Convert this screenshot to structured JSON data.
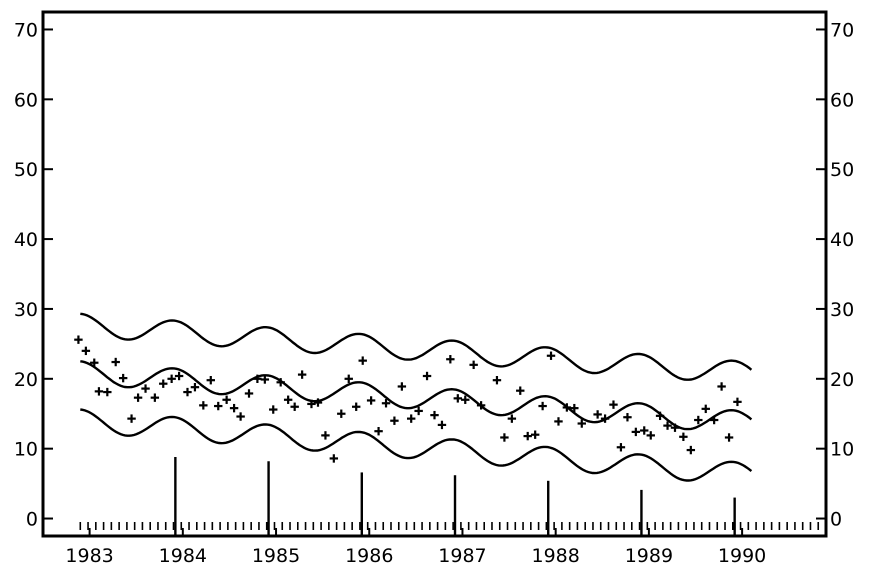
{
  "chart_data": {
    "type": "scatter",
    "title": "",
    "xlabel": "",
    "ylabel": "",
    "x_tick_labels": [
      "1983",
      "1984",
      "1985",
      "1986",
      "1987",
      "1988",
      "1989",
      "1990"
    ],
    "y_tick_labels": [
      "0",
      "10",
      "20",
      "30",
      "40",
      "50",
      "60",
      "70"
    ],
    "xlim": [
      1982.5,
      1990.9
    ],
    "ylim": [
      -2.5,
      72.5
    ],
    "grid": false,
    "legend": "none",
    "curves": [
      {
        "role": "upper",
        "trend_start": 27.7,
        "trend_end": 20.8,
        "amplitude": 1.6,
        "x_start": 1982.9,
        "x_end": 1990.1
      },
      {
        "role": "center",
        "trend_start": 20.9,
        "trend_end": 13.7,
        "amplitude": 1.6,
        "x_start": 1982.9,
        "x_end": 1990.1
      },
      {
        "role": "lower",
        "trend_start": 14.0,
        "trend_end": 6.3,
        "amplitude": 1.6,
        "x_start": 1982.9,
        "x_end": 1990.1
      }
    ],
    "spikes": [
      {
        "x": 1983.92,
        "y": 8.8
      },
      {
        "x": 1984.92,
        "y": 8.2
      },
      {
        "x": 1985.92,
        "y": 6.6
      },
      {
        "x": 1986.92,
        "y": 6.2
      },
      {
        "x": 1987.92,
        "y": 5.4
      },
      {
        "x": 1988.92,
        "y": 4.1
      },
      {
        "x": 1989.92,
        "y": 3.0
      }
    ],
    "points": [
      [
        1982.88,
        25.6
      ],
      [
        1982.96,
        24.0
      ],
      [
        1983.05,
        22.3
      ],
      [
        1983.1,
        18.2
      ],
      [
        1983.19,
        18.1
      ],
      [
        1983.28,
        22.4
      ],
      [
        1983.36,
        20.1
      ],
      [
        1983.45,
        14.3
      ],
      [
        1983.52,
        17.3
      ],
      [
        1983.6,
        18.6
      ],
      [
        1983.7,
        17.3
      ],
      [
        1983.79,
        19.3
      ],
      [
        1983.88,
        20.0
      ],
      [
        1983.96,
        20.4
      ],
      [
        1984.05,
        18.1
      ],
      [
        1984.13,
        18.8
      ],
      [
        1984.22,
        16.2
      ],
      [
        1984.3,
        19.8
      ],
      [
        1984.38,
        16.1
      ],
      [
        1984.47,
        17.0
      ],
      [
        1984.55,
        15.8
      ],
      [
        1984.62,
        14.6
      ],
      [
        1984.71,
        17.9
      ],
      [
        1984.8,
        20.0
      ],
      [
        1984.88,
        19.9
      ],
      [
        1984.97,
        15.6
      ],
      [
        1985.05,
        19.5
      ],
      [
        1985.13,
        17.0
      ],
      [
        1985.2,
        16.0
      ],
      [
        1985.28,
        20.6
      ],
      [
        1985.38,
        16.4
      ],
      [
        1985.45,
        16.6
      ],
      [
        1985.53,
        11.9
      ],
      [
        1985.62,
        8.6
      ],
      [
        1985.7,
        15.0
      ],
      [
        1985.78,
        20.0
      ],
      [
        1985.86,
        16.0
      ],
      [
        1985.93,
        22.6
      ],
      [
        1986.02,
        16.9
      ],
      [
        1986.1,
        12.5
      ],
      [
        1986.18,
        16.5
      ],
      [
        1986.27,
        14.0
      ],
      [
        1986.35,
        18.9
      ],
      [
        1986.45,
        14.3
      ],
      [
        1986.53,
        15.4
      ],
      [
        1986.62,
        20.4
      ],
      [
        1986.7,
        14.8
      ],
      [
        1986.78,
        13.4
      ],
      [
        1986.87,
        22.8
      ],
      [
        1986.95,
        17.2
      ],
      [
        1987.03,
        17.0
      ],
      [
        1987.12,
        22.0
      ],
      [
        1987.2,
        16.2
      ],
      [
        1987.37,
        19.8
      ],
      [
        1987.45,
        11.6
      ],
      [
        1987.53,
        14.3
      ],
      [
        1987.62,
        18.3
      ],
      [
        1987.7,
        11.8
      ],
      [
        1987.78,
        12.0
      ],
      [
        1987.86,
        16.1
      ],
      [
        1987.95,
        23.3
      ],
      [
        1988.03,
        13.9
      ],
      [
        1988.12,
        15.9
      ],
      [
        1988.2,
        15.8
      ],
      [
        1988.28,
        13.6
      ],
      [
        1988.45,
        14.9
      ],
      [
        1988.53,
        14.3
      ],
      [
        1988.62,
        16.3
      ],
      [
        1988.7,
        10.2
      ],
      [
        1988.77,
        14.5
      ],
      [
        1988.86,
        12.4
      ],
      [
        1988.95,
        12.6
      ],
      [
        1989.02,
        11.9
      ],
      [
        1989.12,
        14.7
      ],
      [
        1989.2,
        13.3
      ],
      [
        1989.28,
        13.0
      ],
      [
        1989.37,
        11.7
      ],
      [
        1989.45,
        9.8
      ],
      [
        1989.53,
        14.1
      ],
      [
        1989.61,
        15.7
      ],
      [
        1989.7,
        14.1
      ],
      [
        1989.78,
        18.9
      ],
      [
        1989.86,
        11.6
      ],
      [
        1989.95,
        16.7
      ]
    ]
  }
}
